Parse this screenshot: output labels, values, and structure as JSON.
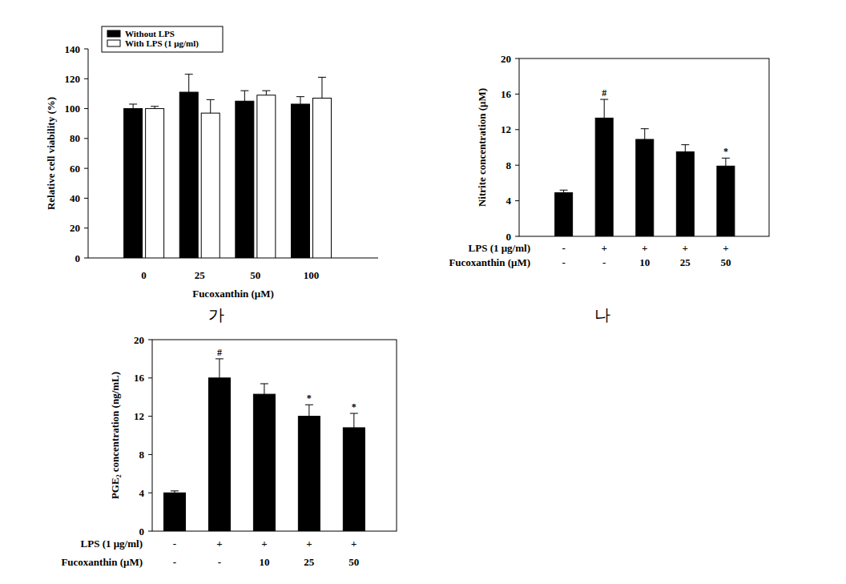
{
  "chart_data": [
    {
      "type": "bar",
      "caption": "가",
      "x_label": "Fucoxanthin (μM)",
      "y_label": "Relative cell viability (%)",
      "categories": [
        "0",
        "25",
        "50",
        "100"
      ],
      "series": [
        {
          "name": "Without LPS",
          "color": "#000000",
          "values": [
            100,
            111,
            105,
            103
          ],
          "errors": [
            3,
            12,
            7,
            5
          ]
        },
        {
          "name": "With LPS (1 μg/ml)",
          "color": "#ffffff",
          "values": [
            100,
            97,
            109,
            107
          ],
          "errors": [
            1.5,
            9,
            3,
            14
          ]
        }
      ],
      "ylim": [
        0,
        140
      ],
      "yticks": [
        0,
        20,
        40,
        60,
        80,
        100,
        120,
        140
      ],
      "legend": "upper left"
    },
    {
      "type": "bar",
      "caption": "나",
      "y_label": "Nitrite concentration (μM)",
      "x_rows": [
        {
          "label": "LPS (1 μg/ml)",
          "values": [
            "-",
            "+",
            "+",
            "+",
            "+"
          ]
        },
        {
          "label": "Fucoxanthin (μM)",
          "values": [
            "-",
            "-",
            "10",
            "25",
            "50"
          ]
        }
      ],
      "series": [
        {
          "color": "#000000",
          "values": [
            4.9,
            13.3,
            10.9,
            9.5,
            7.9
          ],
          "errors": [
            0.3,
            2.1,
            1.2,
            0.8,
            0.9
          ],
          "significance": [
            null,
            "#",
            null,
            null,
            "*"
          ]
        }
      ],
      "ylim": [
        0,
        20
      ],
      "yticks": [
        0,
        4,
        8,
        12,
        16,
        20
      ]
    },
    {
      "type": "bar",
      "y_label": "PGE₂ concentration (ng/mL)",
      "x_rows": [
        {
          "label": "LPS (1 μg/ml)",
          "values": [
            "-",
            "+",
            "+",
            "+",
            "+"
          ]
        },
        {
          "label": "Fucoxanthin (μM)",
          "values": [
            "-",
            "-",
            "10",
            "25",
            "50"
          ]
        }
      ],
      "series": [
        {
          "color": "#000000",
          "values": [
            4.0,
            16.0,
            14.3,
            12.0,
            10.8
          ],
          "errors": [
            0.2,
            2.0,
            1.1,
            1.2,
            1.5
          ],
          "significance": [
            null,
            "#",
            null,
            "*",
            "*"
          ]
        }
      ],
      "ylim": [
        0,
        20
      ],
      "yticks": [
        0,
        4,
        8,
        12,
        16,
        20
      ]
    }
  ]
}
